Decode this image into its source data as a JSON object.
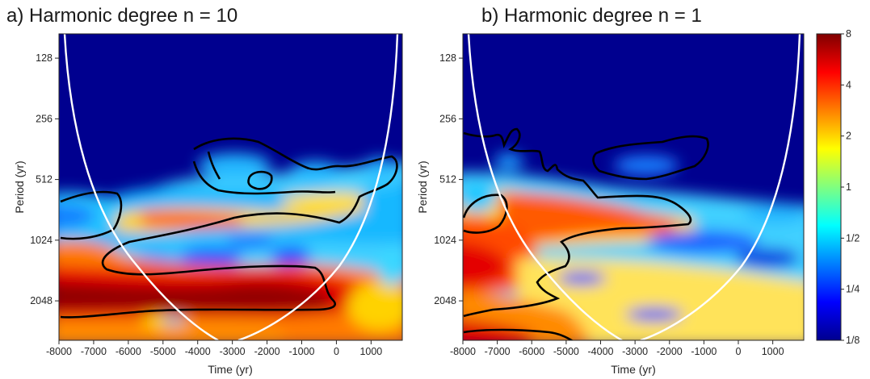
{
  "chart_data": [
    {
      "type": "heatmap",
      "title": "a) Harmonic degree n = 10",
      "xlabel": "Time (yr)",
      "ylabel": "Period (yr)",
      "xlim": [
        -8000,
        1900
      ],
      "ylim_log2": [
        6.6,
        11.65
      ],
      "x_ticks": [
        "-8000",
        "-7000",
        "-6000",
        "-5000",
        "-4000",
        "-3000",
        "-2000",
        "-1000",
        "0",
        "1000"
      ],
      "y_ticks": [
        "128",
        "256",
        "512",
        "1024",
        "2048"
      ],
      "cone_of_influence": "white",
      "significance_contours": "black",
      "power_features": [
        {
          "period_center": 2300,
          "time_range": [
            -8000,
            0
          ],
          "level": "8"
        },
        {
          "period_center": 1450,
          "time_range": [
            -8000,
            0
          ],
          "level": "4"
        },
        {
          "period_center": 800,
          "time_range": [
            -6500,
            1500
          ],
          "level": "2"
        },
        {
          "period_center": 300,
          "time_range": [
            -8000,
            1900
          ],
          "level": "1/8"
        }
      ]
    },
    {
      "type": "heatmap",
      "title": "b) Harmonic degree n = 1",
      "xlabel": "Time (yr)",
      "ylabel": "Period (yr)",
      "xlim": [
        -8000,
        1900
      ],
      "ylim_log2": [
        6.6,
        11.65
      ],
      "x_ticks": [
        "-8000",
        "-7000",
        "-6000",
        "-5000",
        "-4000",
        "-3000",
        "-2000",
        "-1000",
        "0",
        "1000"
      ],
      "y_ticks": [
        "128",
        "256",
        "512",
        "1024",
        "2048"
      ],
      "cone_of_influence": "white",
      "significance_contours": "black",
      "power_features": [
        {
          "period_center": 1450,
          "time_range": [
            -8000,
            -5000
          ],
          "level": "8"
        },
        {
          "period_center": 900,
          "time_range": [
            -6500,
            -2000
          ],
          "level": "4"
        },
        {
          "period_center": 2100,
          "time_range": [
            -6000,
            1000
          ],
          "level": "2"
        },
        {
          "period_center": 300,
          "time_range": [
            -8000,
            1900
          ],
          "level": "1/8"
        }
      ]
    }
  ],
  "colorbar": {
    "tick_labels": [
      "8",
      "4",
      "2",
      "1",
      "1/2",
      "1/4",
      "1/8"
    ]
  }
}
